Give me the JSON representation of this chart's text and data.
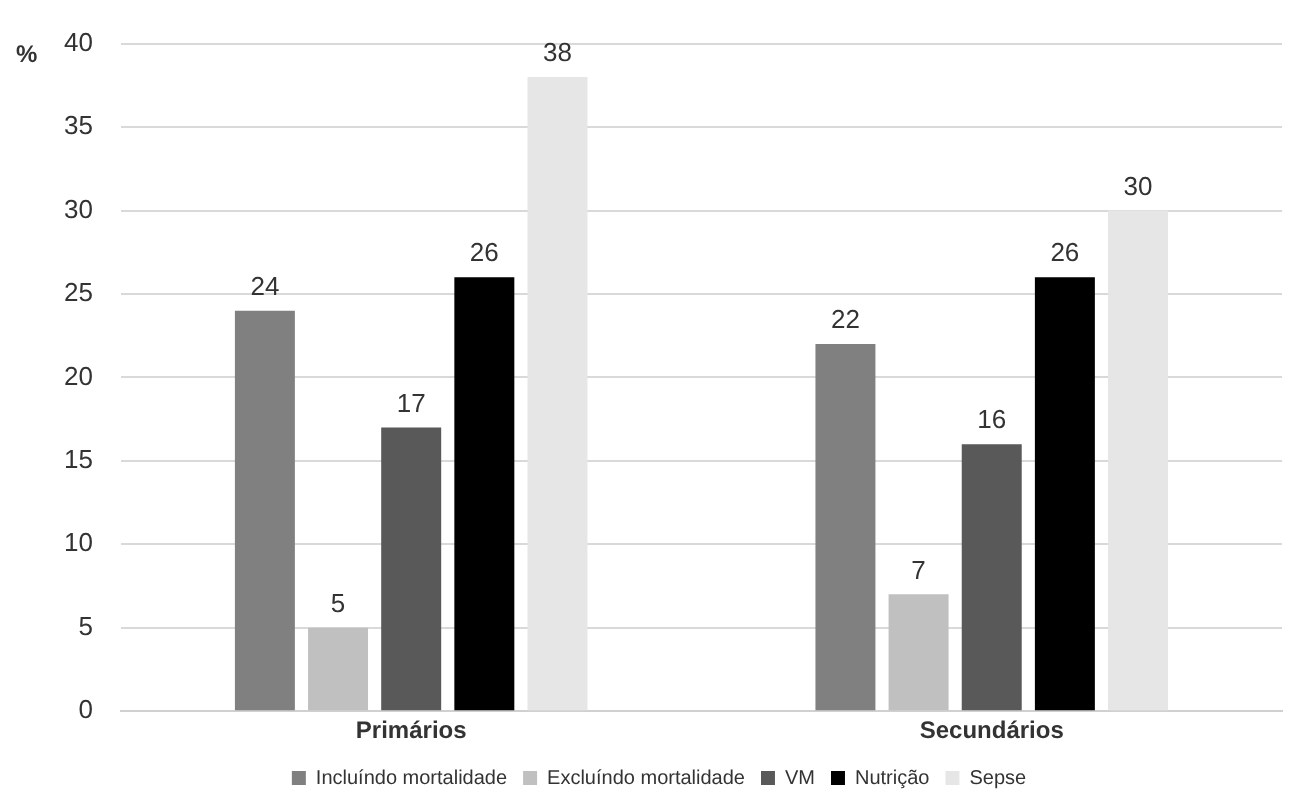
{
  "chart_data": {
    "type": "bar",
    "ylabel": "%",
    "categories": [
      "Primários",
      "Secundários"
    ],
    "series": [
      {
        "name": "Incluíndo mortalidade",
        "color": "#808080",
        "values": [
          24,
          22
        ]
      },
      {
        "name": "Excluíndo mortalidade",
        "color": "#c0c0c0",
        "values": [
          5,
          7
        ]
      },
      {
        "name": "VM",
        "color": "#595959",
        "values": [
          17,
          16
        ]
      },
      {
        "name": "Nutrição",
        "color": "#000000",
        "values": [
          26,
          26
        ]
      },
      {
        "name": "Sepse",
        "color": "#e6e6e6",
        "values": [
          38,
          30
        ]
      }
    ],
    "ylim": [
      0,
      40
    ],
    "yticks": [
      0,
      5,
      10,
      15,
      20,
      25,
      30,
      35,
      40
    ],
    "grid": "y",
    "legend": "bottom",
    "data_labels": true
  }
}
